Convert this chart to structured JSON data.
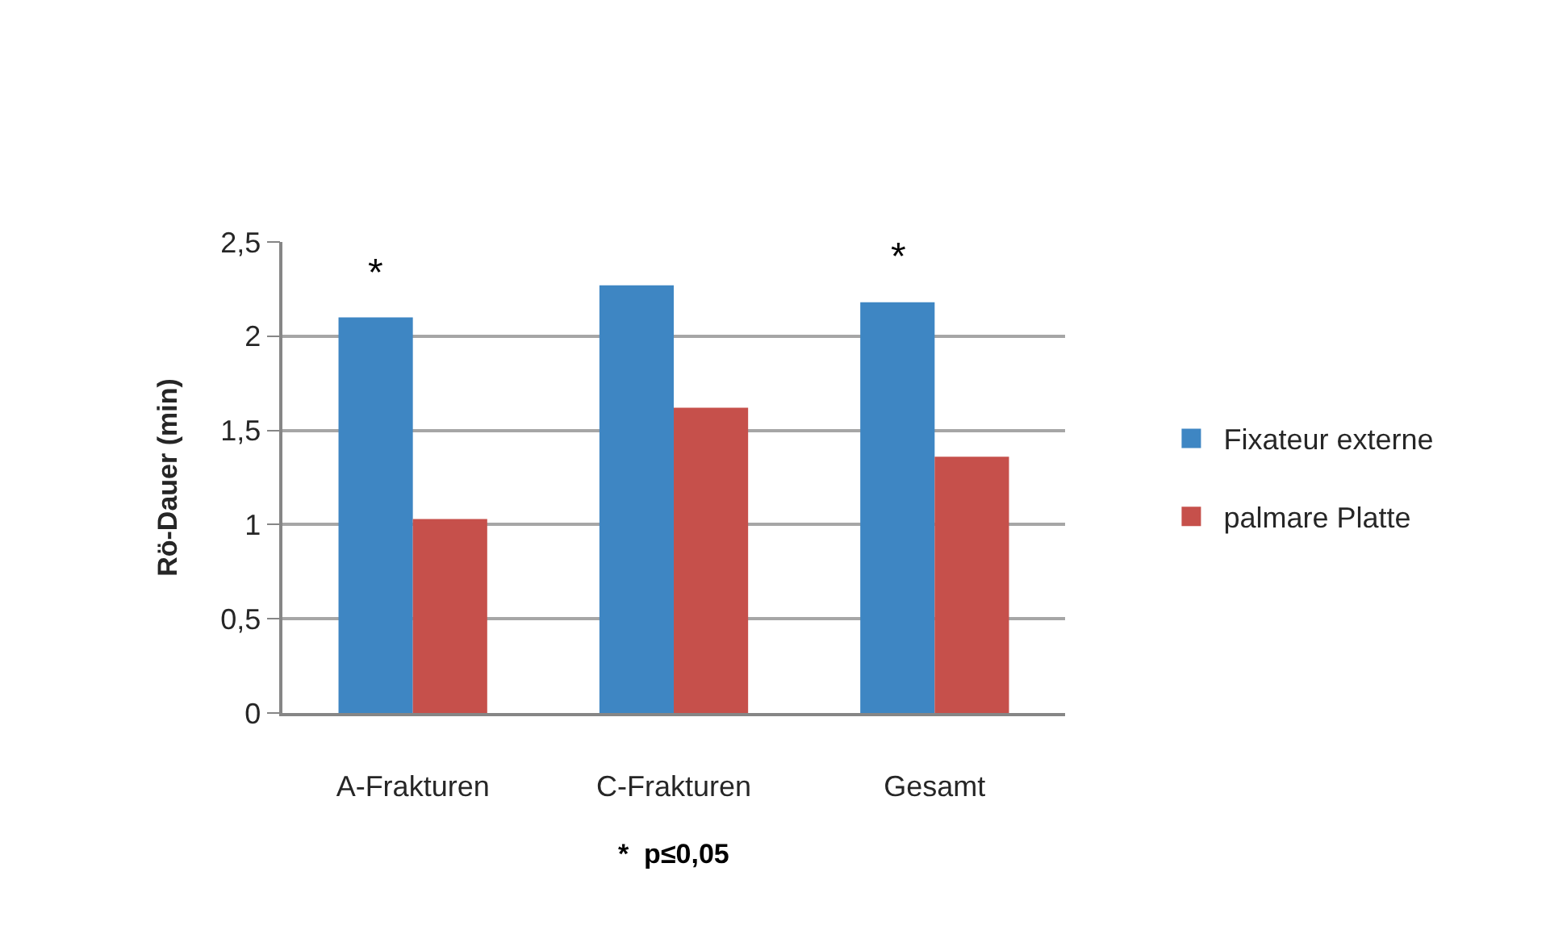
{
  "chart_data": {
    "type": "bar",
    "categories": [
      "A-Frakturen",
      "C-Frakturen",
      "Gesamt"
    ],
    "series": [
      {
        "name": "Fixateur externe",
        "color": "#3e86c3",
        "values": [
          2.1,
          2.27,
          2.18
        ]
      },
      {
        "name": "palmare Platte",
        "color": "#c6504b",
        "values": [
          1.03,
          1.62,
          1.36
        ]
      }
    ],
    "ylabel": "Rö-Dauer (min)",
    "ylim": [
      0,
      2.5
    ],
    "yticks": [
      0,
      {
        "value": 0.5,
        "label": "0,5"
      },
      1,
      {
        "value": 1.5,
        "label": "1,5"
      },
      2,
      {
        "value": 2.5,
        "label": "2,5"
      }
    ],
    "grid": "y",
    "legend": "right",
    "annotations": [
      {
        "text": "*",
        "x": "A-Frakturen",
        "y": 2.1
      },
      {
        "text": "*",
        "x": "Gesamt",
        "y": 2.18
      },
      "*  p≤0,05"
    ]
  }
}
